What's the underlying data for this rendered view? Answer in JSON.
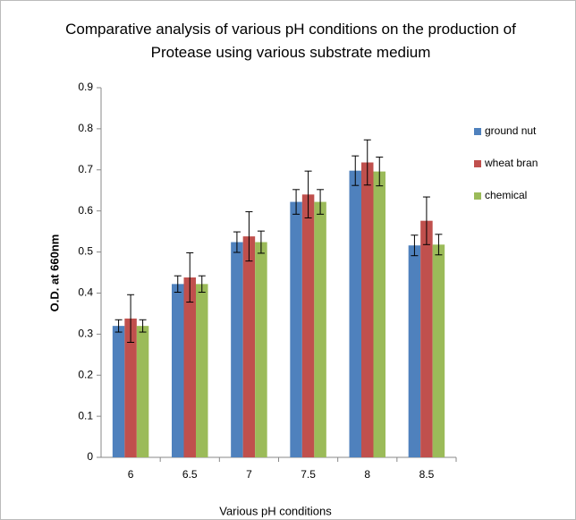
{
  "chart_data": {
    "type": "bar",
    "title": "Comparative analysis of various pH conditions on the production of Protease using various substrate medium",
    "x_label": "Various pH conditions",
    "y_label": "O.D. at 660nm",
    "categories": [
      "6",
      "6.5",
      "7",
      "7.5",
      "8",
      "8.5"
    ],
    "series": [
      {
        "name": "ground nut",
        "color": "#4f81bd",
        "values": [
          0.32,
          0.422,
          0.524,
          0.622,
          0.698,
          0.516
        ],
        "errors": [
          0.015,
          0.02,
          0.025,
          0.03,
          0.036,
          0.025
        ]
      },
      {
        "name": "wheat bran",
        "color": "#c0504d",
        "values": [
          0.338,
          0.438,
          0.538,
          0.64,
          0.718,
          0.576
        ],
        "errors": [
          0.058,
          0.06,
          0.06,
          0.057,
          0.055,
          0.058
        ]
      },
      {
        "name": "chemical",
        "color": "#9bbb59",
        "values": [
          0.32,
          0.422,
          0.524,
          0.622,
          0.696,
          0.518
        ],
        "errors": [
          0.015,
          0.02,
          0.027,
          0.03,
          0.035,
          0.025
        ]
      }
    ],
    "ylim": [
      0,
      0.9
    ],
    "yticks": [
      0,
      0.1,
      0.2,
      0.3,
      0.4,
      0.5,
      0.6,
      0.7,
      0.8,
      0.9
    ],
    "grid": false,
    "legend": "right"
  }
}
